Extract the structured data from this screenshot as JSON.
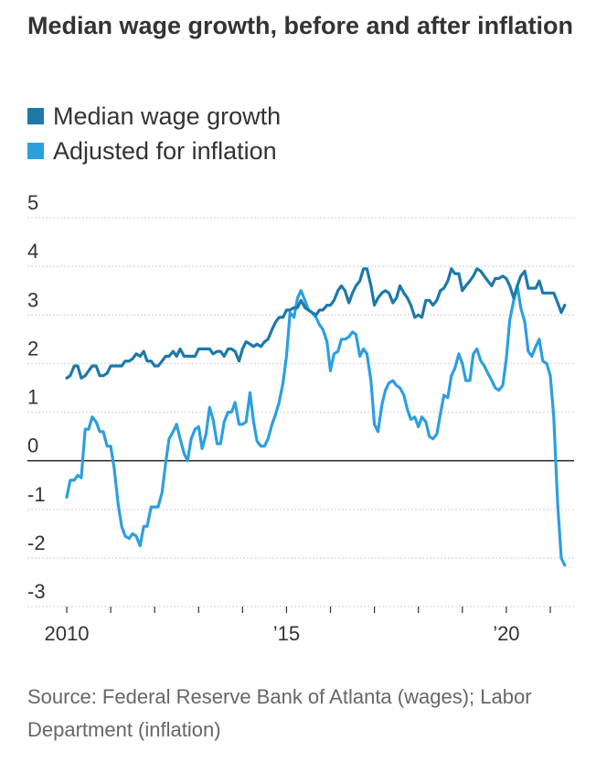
{
  "title": "Median wage growth, before and after inflation",
  "legend": [
    {
      "label": "Median wage growth",
      "color": "#1d79a8"
    },
    {
      "label": "Adjusted for inflation",
      "color": "#2c9fdf"
    }
  ],
  "source": "Source: Federal Reserve Bank of Atlanta (wages); Labor Department (inflation)",
  "chart_data": {
    "type": "line",
    "title": "Median wage growth, before and after inflation",
    "xlabel": "",
    "ylabel": "",
    "xlim": [
      2010,
      2021.5
    ],
    "ylim": [
      -3,
      5
    ],
    "yticks": [
      5,
      4,
      3,
      2,
      1,
      0,
      -1,
      -2,
      -3
    ],
    "xticks": [
      {
        "value": 2010,
        "label": "2010"
      },
      {
        "value": 2015,
        "label": "’15"
      },
      {
        "value": 2020,
        "label": "’20"
      }
    ],
    "grid": true,
    "legend_position": "top-left",
    "series": [
      {
        "name": "Median wage growth",
        "color": "#1d79a8",
        "points": [
          [
            2010.0,
            1.7
          ],
          [
            2010.08,
            1.75
          ],
          [
            2010.17,
            1.95
          ],
          [
            2010.25,
            1.95
          ],
          [
            2010.33,
            1.7
          ],
          [
            2010.42,
            1.75
          ],
          [
            2010.5,
            1.85
          ],
          [
            2010.58,
            1.95
          ],
          [
            2010.67,
            1.95
          ],
          [
            2010.75,
            1.75
          ],
          [
            2010.83,
            1.75
          ],
          [
            2010.92,
            1.8
          ],
          [
            2011.0,
            1.95
          ],
          [
            2011.08,
            1.95
          ],
          [
            2011.17,
            1.95
          ],
          [
            2011.25,
            1.95
          ],
          [
            2011.33,
            2.05
          ],
          [
            2011.42,
            2.05
          ],
          [
            2011.5,
            2.1
          ],
          [
            2011.58,
            2.2
          ],
          [
            2011.67,
            2.15
          ],
          [
            2011.75,
            2.25
          ],
          [
            2011.83,
            2.05
          ],
          [
            2011.92,
            2.05
          ],
          [
            2012.0,
            1.95
          ],
          [
            2012.08,
            1.95
          ],
          [
            2012.17,
            2.05
          ],
          [
            2012.25,
            2.15
          ],
          [
            2012.33,
            2.15
          ],
          [
            2012.42,
            2.25
          ],
          [
            2012.5,
            2.15
          ],
          [
            2012.58,
            2.3
          ],
          [
            2012.67,
            2.15
          ],
          [
            2012.75,
            2.15
          ],
          [
            2012.83,
            2.15
          ],
          [
            2012.92,
            2.15
          ],
          [
            2013.0,
            2.3
          ],
          [
            2013.08,
            2.3
          ],
          [
            2013.17,
            2.3
          ],
          [
            2013.25,
            2.3
          ],
          [
            2013.33,
            2.2
          ],
          [
            2013.42,
            2.25
          ],
          [
            2013.5,
            2.25
          ],
          [
            2013.58,
            2.15
          ],
          [
            2013.67,
            2.3
          ],
          [
            2013.75,
            2.3
          ],
          [
            2013.83,
            2.25
          ],
          [
            2013.92,
            2.05
          ],
          [
            2014.0,
            2.3
          ],
          [
            2014.08,
            2.45
          ],
          [
            2014.17,
            2.4
          ],
          [
            2014.25,
            2.35
          ],
          [
            2014.33,
            2.4
          ],
          [
            2014.42,
            2.35
          ],
          [
            2014.5,
            2.45
          ],
          [
            2014.58,
            2.5
          ],
          [
            2014.67,
            2.7
          ],
          [
            2014.75,
            2.85
          ],
          [
            2014.83,
            2.95
          ],
          [
            2014.92,
            2.95
          ],
          [
            2015.0,
            3.1
          ],
          [
            2015.08,
            3.1
          ],
          [
            2015.17,
            3.15
          ],
          [
            2015.25,
            3.15
          ],
          [
            2015.33,
            3.3
          ],
          [
            2015.42,
            3.15
          ],
          [
            2015.5,
            3.1
          ],
          [
            2015.58,
            3.05
          ],
          [
            2015.67,
            3.0
          ],
          [
            2015.75,
            3.1
          ],
          [
            2015.83,
            3.1
          ],
          [
            2015.92,
            3.2
          ],
          [
            2016.0,
            3.2
          ],
          [
            2016.08,
            3.3
          ],
          [
            2016.17,
            3.5
          ],
          [
            2016.25,
            3.6
          ],
          [
            2016.33,
            3.5
          ],
          [
            2016.42,
            3.25
          ],
          [
            2016.5,
            3.45
          ],
          [
            2016.58,
            3.6
          ],
          [
            2016.67,
            3.7
          ],
          [
            2016.75,
            3.95
          ],
          [
            2016.83,
            3.95
          ],
          [
            2016.92,
            3.6
          ],
          [
            2017.0,
            3.2
          ],
          [
            2017.08,
            3.35
          ],
          [
            2017.17,
            3.45
          ],
          [
            2017.25,
            3.5
          ],
          [
            2017.33,
            3.45
          ],
          [
            2017.42,
            3.25
          ],
          [
            2017.5,
            3.35
          ],
          [
            2017.58,
            3.6
          ],
          [
            2017.67,
            3.45
          ],
          [
            2017.75,
            3.35
          ],
          [
            2017.83,
            3.2
          ],
          [
            2017.92,
            2.95
          ],
          [
            2018.0,
            3.0
          ],
          [
            2018.08,
            2.95
          ],
          [
            2018.17,
            3.3
          ],
          [
            2018.25,
            3.3
          ],
          [
            2018.33,
            3.2
          ],
          [
            2018.42,
            3.3
          ],
          [
            2018.5,
            3.5
          ],
          [
            2018.58,
            3.55
          ],
          [
            2018.67,
            3.7
          ],
          [
            2018.75,
            3.95
          ],
          [
            2018.83,
            3.85
          ],
          [
            2018.92,
            3.85
          ],
          [
            2019.0,
            3.5
          ],
          [
            2019.08,
            3.6
          ],
          [
            2019.17,
            3.7
          ],
          [
            2019.25,
            3.8
          ],
          [
            2019.33,
            3.95
          ],
          [
            2019.42,
            3.9
          ],
          [
            2019.5,
            3.8
          ],
          [
            2019.58,
            3.7
          ],
          [
            2019.67,
            3.6
          ],
          [
            2019.75,
            3.75
          ],
          [
            2019.83,
            3.75
          ],
          [
            2019.92,
            3.8
          ],
          [
            2020.0,
            3.75
          ],
          [
            2020.08,
            3.6
          ],
          [
            2020.17,
            3.35
          ],
          [
            2020.25,
            3.6
          ],
          [
            2020.33,
            3.8
          ],
          [
            2020.42,
            3.9
          ],
          [
            2020.5,
            3.55
          ],
          [
            2020.58,
            3.55
          ],
          [
            2020.67,
            3.55
          ],
          [
            2020.75,
            3.7
          ],
          [
            2020.83,
            3.45
          ],
          [
            2020.92,
            3.45
          ],
          [
            2021.0,
            3.45
          ],
          [
            2021.08,
            3.45
          ],
          [
            2021.17,
            3.25
          ],
          [
            2021.25,
            3.05
          ],
          [
            2021.33,
            3.2
          ]
        ]
      },
      {
        "name": "Adjusted for inflation",
        "color": "#2c9fdf",
        "points": [
          [
            2010.0,
            -0.75
          ],
          [
            2010.08,
            -0.4
          ],
          [
            2010.17,
            -0.4
          ],
          [
            2010.25,
            -0.3
          ],
          [
            2010.33,
            -0.35
          ],
          [
            2010.42,
            0.65
          ],
          [
            2010.5,
            0.65
          ],
          [
            2010.58,
            0.9
          ],
          [
            2010.67,
            0.8
          ],
          [
            2010.75,
            0.6
          ],
          [
            2010.83,
            0.6
          ],
          [
            2010.92,
            0.3
          ],
          [
            2011.0,
            0.3
          ],
          [
            2011.08,
            -0.15
          ],
          [
            2011.17,
            -0.9
          ],
          [
            2011.25,
            -1.35
          ],
          [
            2011.33,
            -1.55
          ],
          [
            2011.42,
            -1.6
          ],
          [
            2011.5,
            -1.5
          ],
          [
            2011.58,
            -1.55
          ],
          [
            2011.67,
            -1.75
          ],
          [
            2011.75,
            -1.35
          ],
          [
            2011.83,
            -1.35
          ],
          [
            2011.92,
            -0.95
          ],
          [
            2012.0,
            -0.95
          ],
          [
            2012.08,
            -0.95
          ],
          [
            2012.17,
            -0.65
          ],
          [
            2012.25,
            -0.05
          ],
          [
            2012.33,
            0.45
          ],
          [
            2012.42,
            0.6
          ],
          [
            2012.5,
            0.75
          ],
          [
            2012.58,
            0.45
          ],
          [
            2012.67,
            0.15
          ],
          [
            2012.75,
            0.0
          ],
          [
            2012.83,
            0.45
          ],
          [
            2012.92,
            0.65
          ],
          [
            2013.0,
            0.7
          ],
          [
            2013.08,
            0.25
          ],
          [
            2013.17,
            0.55
          ],
          [
            2013.25,
            1.1
          ],
          [
            2013.33,
            0.85
          ],
          [
            2013.42,
            0.35
          ],
          [
            2013.5,
            0.35
          ],
          [
            2013.58,
            0.8
          ],
          [
            2013.67,
            1.0
          ],
          [
            2013.75,
            1.0
          ],
          [
            2013.83,
            1.2
          ],
          [
            2013.92,
            0.75
          ],
          [
            2014.0,
            0.75
          ],
          [
            2014.08,
            0.8
          ],
          [
            2014.17,
            1.4
          ],
          [
            2014.25,
            0.8
          ],
          [
            2014.33,
            0.4
          ],
          [
            2014.42,
            0.3
          ],
          [
            2014.5,
            0.3
          ],
          [
            2014.58,
            0.45
          ],
          [
            2014.67,
            0.75
          ],
          [
            2014.75,
            0.95
          ],
          [
            2014.83,
            1.2
          ],
          [
            2014.92,
            1.6
          ],
          [
            2015.0,
            2.15
          ],
          [
            2015.08,
            3.05
          ],
          [
            2015.17,
            2.95
          ],
          [
            2015.25,
            3.35
          ],
          [
            2015.33,
            3.5
          ],
          [
            2015.42,
            3.3
          ],
          [
            2015.5,
            3.1
          ],
          [
            2015.58,
            3.05
          ],
          [
            2015.67,
            2.95
          ],
          [
            2015.75,
            2.8
          ],
          [
            2015.83,
            2.7
          ],
          [
            2015.92,
            2.45
          ],
          [
            2016.0,
            1.85
          ],
          [
            2016.08,
            2.2
          ],
          [
            2016.17,
            2.25
          ],
          [
            2016.25,
            2.5
          ],
          [
            2016.33,
            2.5
          ],
          [
            2016.42,
            2.55
          ],
          [
            2016.5,
            2.65
          ],
          [
            2016.58,
            2.6
          ],
          [
            2016.67,
            2.15
          ],
          [
            2016.75,
            2.3
          ],
          [
            2016.83,
            2.2
          ],
          [
            2016.92,
            1.65
          ],
          [
            2017.0,
            0.75
          ],
          [
            2017.08,
            0.6
          ],
          [
            2017.17,
            1.15
          ],
          [
            2017.25,
            1.45
          ],
          [
            2017.33,
            1.6
          ],
          [
            2017.42,
            1.65
          ],
          [
            2017.5,
            1.55
          ],
          [
            2017.58,
            1.5
          ],
          [
            2017.67,
            1.35
          ],
          [
            2017.75,
            1.05
          ],
          [
            2017.83,
            0.85
          ],
          [
            2017.92,
            0.9
          ],
          [
            2018.0,
            0.7
          ],
          [
            2018.08,
            0.9
          ],
          [
            2018.17,
            0.8
          ],
          [
            2018.25,
            0.5
          ],
          [
            2018.33,
            0.45
          ],
          [
            2018.42,
            0.55
          ],
          [
            2018.5,
            0.95
          ],
          [
            2018.58,
            1.35
          ],
          [
            2018.67,
            1.3
          ],
          [
            2018.75,
            1.75
          ],
          [
            2018.83,
            1.9
          ],
          [
            2018.92,
            2.2
          ],
          [
            2019.0,
            2.0
          ],
          [
            2019.08,
            1.65
          ],
          [
            2019.17,
            1.65
          ],
          [
            2019.25,
            2.2
          ],
          [
            2019.33,
            2.3
          ],
          [
            2019.42,
            2.05
          ],
          [
            2019.5,
            1.95
          ],
          [
            2019.58,
            1.8
          ],
          [
            2019.67,
            1.65
          ],
          [
            2019.75,
            1.5
          ],
          [
            2019.83,
            1.45
          ],
          [
            2019.92,
            1.55
          ],
          [
            2020.0,
            2.1
          ],
          [
            2020.08,
            2.9
          ],
          [
            2020.17,
            3.3
          ],
          [
            2020.25,
            3.6
          ],
          [
            2020.33,
            3.15
          ],
          [
            2020.42,
            2.85
          ],
          [
            2020.5,
            2.25
          ],
          [
            2020.58,
            2.15
          ],
          [
            2020.67,
            2.35
          ],
          [
            2020.75,
            2.5
          ],
          [
            2020.83,
            2.05
          ],
          [
            2020.92,
            2.0
          ],
          [
            2021.0,
            1.75
          ],
          [
            2021.08,
            0.9
          ],
          [
            2021.17,
            -0.9
          ],
          [
            2021.25,
            -2.0
          ],
          [
            2021.33,
            -2.15
          ]
        ]
      }
    ]
  }
}
